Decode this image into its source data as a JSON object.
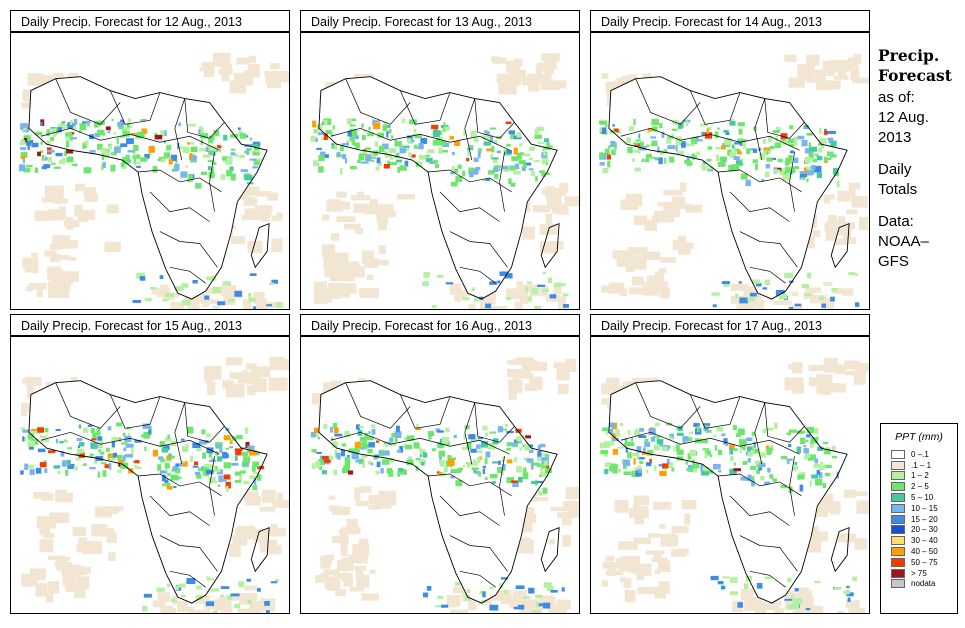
{
  "panels": [
    {
      "title": "Daily Precip. Forecast for  12 Aug., 2013"
    },
    {
      "title": "Daily Precip. Forecast for  13 Aug., 2013"
    },
    {
      "title": "Daily Precip. Forecast for  14 Aug., 2013"
    },
    {
      "title": "Daily Precip. Forecast for  15 Aug., 2013"
    },
    {
      "title": "Daily Precip. Forecast for  16 Aug., 2013"
    },
    {
      "title": "Daily Precip. Forecast for  17 Aug., 2013"
    }
  ],
  "side": {
    "line1": "Precip.",
    "line2": "Forecast",
    "line3": "as of:",
    "line4": "12 Aug.",
    "line5": "2013",
    "line6": "Daily",
    "line7": "Totals",
    "line8": "Data:",
    "line9": "NOAA–",
    "line10": "GFS"
  },
  "legend": {
    "title": "PPT (mm)",
    "items": [
      {
        "label": "0 –.1",
        "color": "#ffffff"
      },
      {
        "label": ".1 – 1",
        "color": "#f2e6d3"
      },
      {
        "label": "1 – 2",
        "color": "#b4f0a0"
      },
      {
        "label": "2 – 5",
        "color": "#6ee66e"
      },
      {
        "label": "5 – 10",
        "color": "#46c8a0"
      },
      {
        "label": "10 – 15",
        "color": "#78b4f0"
      },
      {
        "label": "15 – 20",
        "color": "#3c8ce6"
      },
      {
        "label": "20 – 30",
        "color": "#1450d2"
      },
      {
        "label": "30 – 40",
        "color": "#ffdc6e"
      },
      {
        "label": "40 – 50",
        "color": "#ffa000"
      },
      {
        "label": "50 – 75",
        "color": "#f03c00"
      },
      {
        "label": "> 75",
        "color": "#a0141e"
      },
      {
        "label": "nodata",
        "color": "#c8c8c8"
      }
    ]
  }
}
